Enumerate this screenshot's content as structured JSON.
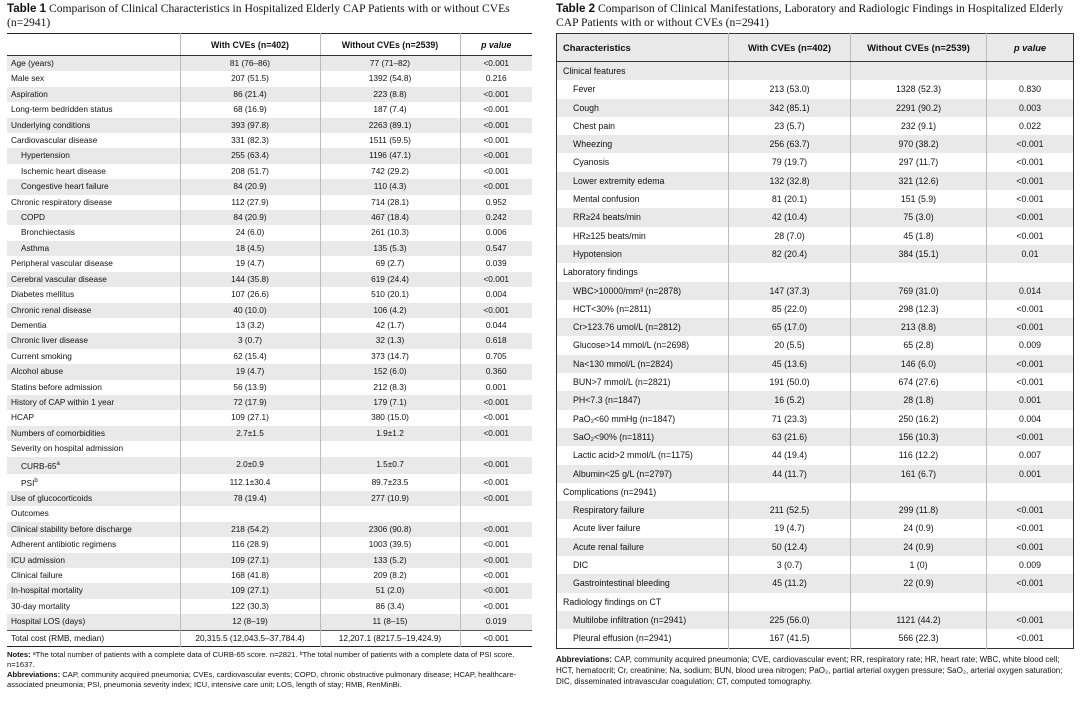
{
  "table1": {
    "label": "Table 1",
    "title": "Comparison of Clinical Characteristics in Hospitalized Elderly CAP Patients with or without CVEs (n=2941)",
    "headers": [
      "",
      "With CVEs (n=402)",
      "Without CVEs (n=2539)",
      "p value"
    ],
    "rows": [
      {
        "label": "Age (years)",
        "with": "81 (76–86)",
        "without": "77 (71–82)",
        "p": "<0.001"
      },
      {
        "label": "Male sex",
        "with": "207 (51.5)",
        "without": "1392 (54.8)",
        "p": "0.216"
      },
      {
        "label": "Aspiration",
        "with": "86 (21.4)",
        "without": "223 (8.8)",
        "p": "<0.001"
      },
      {
        "label": "Long-term bedridden status",
        "with": "68 (16.9)",
        "without": "187 (7.4)",
        "p": "<0.001"
      },
      {
        "label": "Underlying conditions",
        "with": "393 (97.8)",
        "without": "2263 (89.1)",
        "p": "<0.001"
      },
      {
        "label": "Cardiovascular disease",
        "with": "331 (82.3)",
        "without": "1511 (59.5)",
        "p": "<0.001"
      },
      {
        "label": "Hypertension",
        "with": "255 (63.4)",
        "without": "1196 (47.1)",
        "p": "<0.001",
        "indent": true
      },
      {
        "label": "Ischemic heart disease",
        "with": "208 (51.7)",
        "without": "742 (29.2)",
        "p": "<0.001",
        "indent": true
      },
      {
        "label": "Congestive heart failure",
        "with": "84 (20.9)",
        "without": "110 (4.3)",
        "p": "<0.001",
        "indent": true
      },
      {
        "label": "Chronic respiratory disease",
        "with": "112 (27.9)",
        "without": "714 (28.1)",
        "p": "0.952"
      },
      {
        "label": "COPD",
        "with": "84 (20.9)",
        "without": "467 (18.4)",
        "p": "0.242",
        "indent": true
      },
      {
        "label": "Bronchiectasis",
        "with": "24 (6.0)",
        "without": "261 (10.3)",
        "p": "0.006",
        "indent": true
      },
      {
        "label": "Asthma",
        "with": "18 (4.5)",
        "without": "135 (5.3)",
        "p": "0.547",
        "indent": true
      },
      {
        "label": "Peripheral vascular disease",
        "with": "19 (4.7)",
        "without": "69 (2.7)",
        "p": "0.039"
      },
      {
        "label": "Cerebral vascular disease",
        "with": "144 (35.8)",
        "without": "619 (24.4)",
        "p": "<0.001"
      },
      {
        "label": "Diabetes mellitus",
        "with": "107 (26.6)",
        "without": "510 (20.1)",
        "p": "0.004"
      },
      {
        "label": "Chronic renal disease",
        "with": "40 (10.0)",
        "without": "106 (4.2)",
        "p": "<0.001"
      },
      {
        "label": "Dementia",
        "with": "13 (3.2)",
        "without": "42 (1.7)",
        "p": "0.044"
      },
      {
        "label": "Chronic liver disease",
        "with": "3 (0.7)",
        "without": "32 (1.3)",
        "p": "0.618"
      },
      {
        "label": "Current smoking",
        "with": "62 (15.4)",
        "without": "373 (14.7)",
        "p": "0.705"
      },
      {
        "label": "Alcohol abuse",
        "with": "19 (4.7)",
        "without": "152 (6.0)",
        "p": "0.360"
      },
      {
        "label": "Statins before admission",
        "with": "56 (13.9)",
        "without": "212 (8.3)",
        "p": "0.001"
      },
      {
        "label": "History of CAP within 1 year",
        "with": "72 (17.9)",
        "without": "179 (7.1)",
        "p": "<0.001"
      },
      {
        "label": "HCAP",
        "with": "109 (27.1)",
        "without": "380 (15.0)",
        "p": "<0.001"
      },
      {
        "label": "Numbers of comorbidities",
        "with": "2.7±1.5",
        "without": "1.9±1.2",
        "p": "<0.001"
      },
      {
        "label": "Severity on hospital admission",
        "with": "",
        "without": "",
        "p": ""
      },
      {
        "label": "CURB-65",
        "sup": "a",
        "with": "2.0±0.9",
        "without": "1.5±0.7",
        "p": "<0.001",
        "indent": true
      },
      {
        "label": "PSI",
        "sup": "b",
        "with": "112.1±30.4",
        "without": "89.7±23.5",
        "p": "<0.001",
        "indent": true
      },
      {
        "label": "Use of glucocorticoids",
        "with": "78 (19.4)",
        "without": "277 (10.9)",
        "p": "<0.001"
      },
      {
        "label": "Outcomes",
        "with": "",
        "without": "",
        "p": ""
      },
      {
        "label": "Clinical stability before discharge",
        "with": "218 (54.2)",
        "without": "2306 (90.8)",
        "p": "<0.001"
      },
      {
        "label": "Adherent antibiotic regimens",
        "with": "116 (28.9)",
        "without": "1003 (39.5)",
        "p": "<0.001"
      },
      {
        "label": "ICU admission",
        "with": "109 (27.1)",
        "without": "133 (5.2)",
        "p": "<0.001"
      },
      {
        "label": "Clinical failure",
        "with": "168 (41.8)",
        "without": "209 (8.2)",
        "p": "<0.001"
      },
      {
        "label": "In-hospital mortality",
        "with": "109 (27.1)",
        "without": "51 (2.0)",
        "p": "<0.001"
      },
      {
        "label": "30-day mortality",
        "with": "122 (30.3)",
        "without": "86 (3.4)",
        "p": "<0.001"
      },
      {
        "label": "Hospital LOS (days)",
        "with": "12 (8–19)",
        "without": "11 (8–15)",
        "p": "0.019"
      },
      {
        "label": "Total cost (RMB, median)",
        "with": "20,315.5 (12,043.5–37,784.4)",
        "without": "12,207.1 (8217.5–19,424.9)",
        "p": "<0.001"
      }
    ],
    "notes_label": "Notes:",
    "notes_text": "ᵃThe total number of patients with a complete data of CURB-65 score. n=2821. ᵇThe total number of patients with a complete data of PSI score. n=1637.",
    "abbr_label": "Abbreviations:",
    "abbr_text": "CAP, community acquired pneumonia; CVEs, cardiovascular events; COPD, chronic obstructive pulmonary disease; HCAP, healthcare-associated pneumonia; PSI, pneumonia severity index; ICU, intensive care unit; LOS, length of stay; RMB, RenMinBi."
  },
  "table2": {
    "label": "Table 2",
    "title": "Comparison of Clinical Manifestations, Laboratory and Radiologic Findings in Hospitalized Elderly CAP Patients with or without CVEs (n=2941)",
    "headers": [
      "Characteristics",
      "With CVEs (n=402)",
      "Without CVEs (n=2539)",
      "p value"
    ],
    "rows": [
      {
        "label": "Clinical features",
        "with": "",
        "without": "",
        "p": ""
      },
      {
        "label": "Fever",
        "with": "213 (53.0)",
        "without": "1328 (52.3)",
        "p": "0.830",
        "indent": true
      },
      {
        "label": "Cough",
        "with": "342 (85.1)",
        "without": "2291 (90.2)",
        "p": "0.003",
        "indent": true
      },
      {
        "label": "Chest pain",
        "with": "23 (5.7)",
        "without": "232 (9.1)",
        "p": "0.022",
        "indent": true
      },
      {
        "label": "Wheezing",
        "with": "256 (63.7)",
        "without": "970 (38.2)",
        "p": "<0.001",
        "indent": true
      },
      {
        "label": "Cyanosis",
        "with": "79 (19.7)",
        "without": "297 (11.7)",
        "p": "<0.001",
        "indent": true
      },
      {
        "label": "Lower extremity edema",
        "with": "132 (32.8)",
        "without": "321 (12.6)",
        "p": "<0.001",
        "indent": true
      },
      {
        "label": "Mental confusion",
        "with": "81 (20.1)",
        "without": "151 (5.9)",
        "p": "<0.001",
        "indent": true
      },
      {
        "label": "RR≥24 beats/min",
        "with": "42 (10.4)",
        "without": "75 (3.0)",
        "p": "<0.001",
        "indent": true
      },
      {
        "label": "HR≥125 beats/min",
        "with": "28 (7.0)",
        "without": "45 (1.8)",
        "p": "<0.001",
        "indent": true
      },
      {
        "label": "Hypotension",
        "with": "82 (20.4)",
        "without": "384 (15.1)",
        "p": "0.01",
        "indent": true
      },
      {
        "label": "Laboratory findings",
        "with": "",
        "without": "",
        "p": ""
      },
      {
        "label": "WBC>10000/mm³ (n=2878)",
        "with": "147 (37.3)",
        "without": "769 (31.0)",
        "p": "0.014",
        "indent": true
      },
      {
        "label": "HCT<30% (n=2811)",
        "with": "85 (22.0)",
        "without": "298 (12.3)",
        "p": "<0.001",
        "indent": true
      },
      {
        "label": "Cr>123.76 umol/L (n=2812)",
        "with": "65 (17.0)",
        "without": "213 (8.8)",
        "p": "<0.001",
        "indent": true
      },
      {
        "label": "Glucose>14 mmol/L (n=2698)",
        "with": "20 (5.5)",
        "without": "65 (2.8)",
        "p": "0.009",
        "indent": true
      },
      {
        "label": "Na<130 mmol/L (n=2824)",
        "with": "45 (13.6)",
        "without": "146 (6.0)",
        "p": "<0.001",
        "indent": true
      },
      {
        "label": "BUN>7 mmol/L (n=2821)",
        "with": "191 (50.0)",
        "without": "674 (27.6)",
        "p": "<0.001",
        "indent": true
      },
      {
        "label": "PH<7.3 (n=1847)",
        "with": "16 (5.2)",
        "without": "28 (1.8)",
        "p": "0.001",
        "indent": true
      },
      {
        "label": "PaO₂<60 mmHg (n=1847)",
        "with": "71 (23.3)",
        "without": "250 (16.2)",
        "p": "0.004",
        "indent": true
      },
      {
        "label": "SaO₂<90% (n=1811)",
        "with": "63 (21.6)",
        "without": "156 (10.3)",
        "p": "<0.001",
        "indent": true
      },
      {
        "label": "Lactic acid>2 mmol/L (n=1175)",
        "with": "44 (19.4)",
        "without": "116 (12.2)",
        "p": "0.007",
        "indent": true
      },
      {
        "label": "Albumin<25 g/L (n=2797)",
        "with": "44 (11.7)",
        "without": "161 (6.7)",
        "p": "0.001",
        "indent": true
      },
      {
        "label": "Complications (n=2941)",
        "with": "",
        "without": "",
        "p": ""
      },
      {
        "label": "Respiratory failure",
        "with": "211 (52.5)",
        "without": "299 (11.8)",
        "p": "<0.001",
        "indent": true
      },
      {
        "label": "Acute liver failure",
        "with": "19 (4.7)",
        "without": "24 (0.9)",
        "p": "<0.001",
        "indent": true
      },
      {
        "label": "Acute renal failure",
        "with": "50 (12.4)",
        "without": "24 (0.9)",
        "p": "<0.001",
        "indent": true
      },
      {
        "label": "DIC",
        "with": "3 (0.7)",
        "without": "1 (0)",
        "p": "0.009",
        "indent": true
      },
      {
        "label": "Gastrointestinal bleeding",
        "with": "45 (11.2)",
        "without": "22 (0.9)",
        "p": "<0.001",
        "indent": true
      },
      {
        "label": "Radiology findings on CT",
        "with": "",
        "without": "",
        "p": ""
      },
      {
        "label": "Multilobe infiltration (n=2941)",
        "with": "225 (56.0)",
        "without": "1121 (44.2)",
        "p": "<0.001",
        "indent": true
      },
      {
        "label": "Pleural effusion (n=2941)",
        "with": "167 (41.5)",
        "without": "566 (22.3)",
        "p": "<0.001",
        "indent": true
      }
    ],
    "abbr_label": "Abbreviations:",
    "abbr_text": "CAP, community acquired pneumonia; CVE, cardiovascular event; RR, respiratory rate; HR, heart rate; WBC, white blood cell; HCT, hematocrit; Cr, creatinine; Na, sodium; BUN, blood urea nitrogen; PaO₂, partial arterial oxygen pressure; SaO₂, arterial oxygen saturation; DIC, disseminated intravascular coagulation; CT, computed tomography."
  }
}
